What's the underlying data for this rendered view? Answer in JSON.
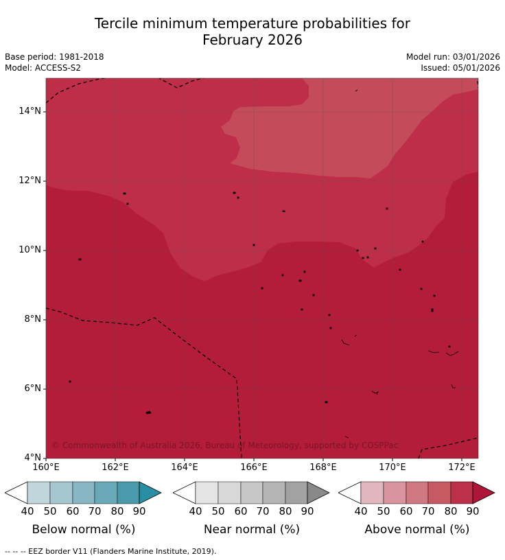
{
  "title_line1": "Tercile minimum temperature probabilities for",
  "title_line2": "February 2026",
  "base_period": "Base period: 1981-2018",
  "model": "Model: ACCESS-S2",
  "model_run": "Model run: 03/01/2026",
  "issued": "Issued: 05/01/2026",
  "copyright": "© Commonwealth of Australia 2026, Bureau of Meteorology, supported by COSPPac",
  "map": {
    "lat_labels": [
      "14°N",
      "12°N",
      "10°N",
      "8°N",
      "6°N",
      "4°N"
    ],
    "lon_labels": [
      "160°E",
      "162°E",
      "164°E",
      "166°E",
      "168°E",
      "170°E",
      "172°E"
    ],
    "fill_colors": {
      "above_90": "#b31d39",
      "above_80": "#bf2e49",
      "above_70": "#c44c5a"
    }
  },
  "colorbars": [
    {
      "title": "Below normal (%)",
      "ticks": [
        "40",
        "50",
        "60",
        "70",
        "80",
        "90"
      ],
      "colors": [
        "#c0d6dd",
        "#a4c6cf",
        "#88b6c3",
        "#6aa9b8",
        "#4a9aac",
        "#2a8ea2"
      ]
    },
    {
      "title": "Near normal (%)",
      "ticks": [
        "40",
        "50",
        "60",
        "70",
        "80",
        "90"
      ],
      "colors": [
        "#e4e4e4",
        "#d8d8d8",
        "#c7c7c7",
        "#b4b4b4",
        "#a2a2a2",
        "#898989"
      ]
    },
    {
      "title": "Above normal (%)",
      "ticks": [
        "40",
        "50",
        "60",
        "70",
        "80",
        "90"
      ],
      "colors": [
        "#e2b6bd",
        "#d8959e",
        "#cf7881",
        "#c75962",
        "#bc3048",
        "#ae1637"
      ]
    }
  ],
  "footer": "--  --  -- EEZ border V11 (Flanders Marine Institute, 2019)."
}
